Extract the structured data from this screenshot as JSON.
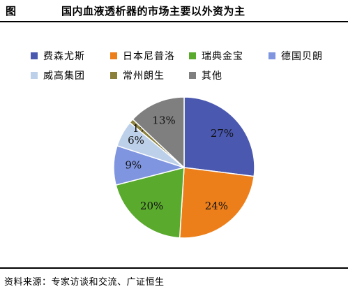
{
  "header": {
    "figure_label": "图",
    "title": "国内血液透析器的市场主要以外资为主"
  },
  "chart_data": {
    "type": "pie",
    "title": "国内血液透析器的市场主要以外资为主",
    "start_angle_deg": 0,
    "direction": "clockwise",
    "slices": [
      {
        "label": "费森尤斯",
        "value": 27,
        "display": "27%",
        "color": "#4a58b0"
      },
      {
        "label": "日本尼普洛",
        "value": 24,
        "display": "24%",
        "color": "#ed7f1a"
      },
      {
        "label": "瑞典金宝",
        "value": 20,
        "display": "20%",
        "color": "#5aaa2e"
      },
      {
        "label": "德国贝朗",
        "value": 9,
        "display": "9%",
        "color": "#7f95e0"
      },
      {
        "label": "威高集团",
        "value": 6,
        "display": "6%",
        "color": "#bdd0ea"
      },
      {
        "label": "常州朗生",
        "value": 1,
        "display": "1%",
        "color": "#8a7f3b"
      },
      {
        "label": "其他",
        "value": 13,
        "display": "13%",
        "color": "#7f7f7f"
      }
    ],
    "legend_position": "top"
  },
  "footer": {
    "source": "资料来源：专家访谈和交流、广证恒生"
  }
}
